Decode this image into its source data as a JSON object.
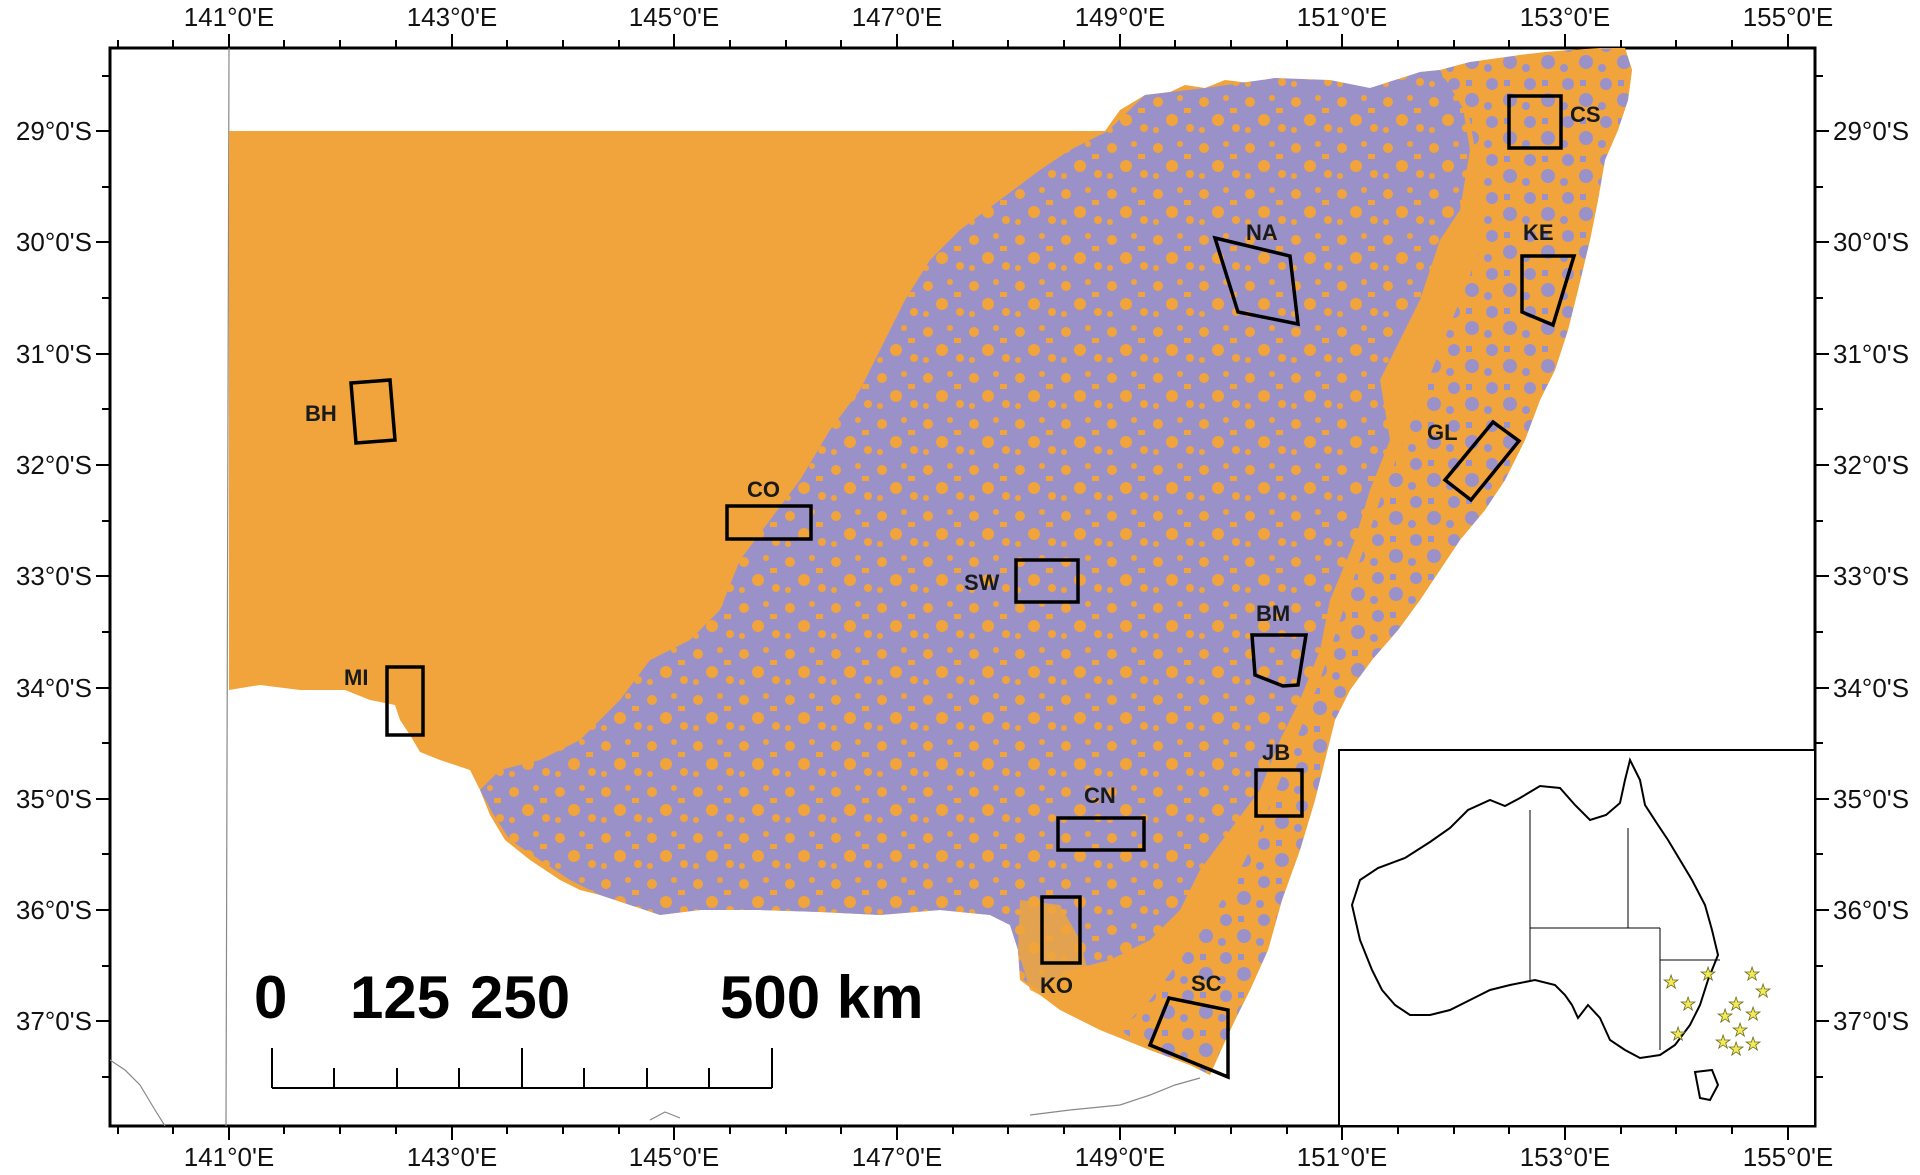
{
  "map": {
    "top_axis_labels": [
      "141°0'E",
      "143°0'E",
      "145°0'E",
      "147°0'E",
      "149°0'E",
      "151°0'E",
      "153°0'E",
      "155°0'E"
    ],
    "bottom_axis_labels": [
      "141°0'E",
      "143°0'E",
      "145°0'E",
      "147°0'E",
      "149°0'E",
      "151°0'E",
      "153°0'E",
      "155°0'E"
    ],
    "left_axis_labels": [
      "29°0'S",
      "30°0'S",
      "31°0'S",
      "32°0'S",
      "33°0'S",
      "34°0'S",
      "35°0'S",
      "36°0'S",
      "37°0'S"
    ],
    "right_axis_labels": [
      "29°0'S",
      "30°0'S",
      "31°0'S",
      "32°0'S",
      "33°0'S",
      "34°0'S",
      "35°0'S",
      "36°0'S",
      "37°0'S"
    ],
    "colors": {
      "class_a": "#f0a43b",
      "class_b": "#9b91c9",
      "frame": "#000000",
      "inset_star": "#f3ea5a"
    },
    "sites": [
      "CS",
      "NA",
      "KE",
      "BH",
      "GL",
      "CO",
      "SW",
      "BM",
      "MI",
      "JB",
      "CN",
      "KO",
      "SC"
    ],
    "scale_bar": {
      "labels": [
        "0",
        "125",
        "250",
        "500 km"
      ]
    },
    "inset": {
      "description_icon": "australia-locator-map",
      "star_count": 13
    }
  }
}
